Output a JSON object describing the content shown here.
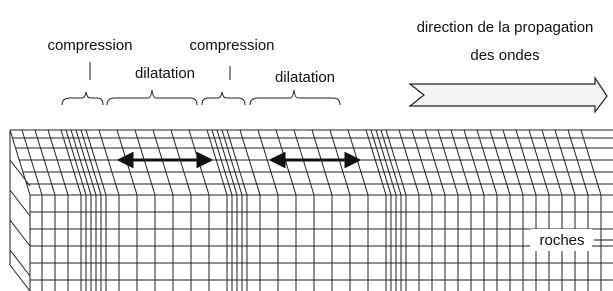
{
  "zones": [
    {
      "label": "compression"
    },
    {
      "label": "dilatation"
    },
    {
      "label": "compression"
    },
    {
      "label": "dilatation"
    }
  ],
  "direction": {
    "lines": [
      "direction de la propagation",
      "des ondes"
    ]
  },
  "material": "roches"
}
